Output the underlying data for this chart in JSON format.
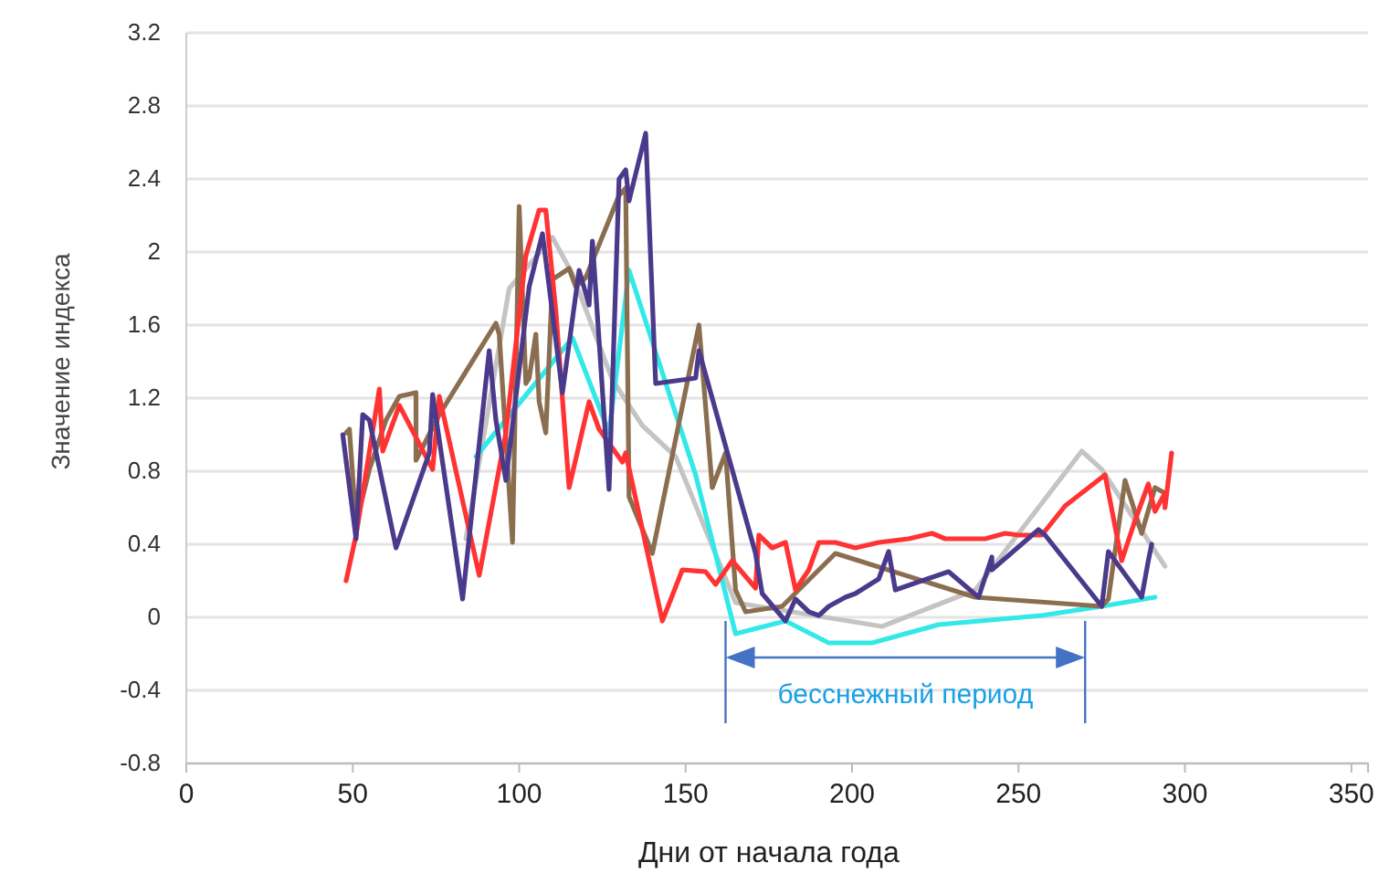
{
  "chart_data": {
    "type": "line",
    "xlabel": "Дни от начала года",
    "ylabel": "Значение индекса",
    "xlim": [
      0,
      355
    ],
    "xticks": [
      0,
      50,
      100,
      150,
      200,
      250,
      300,
      350
    ],
    "ylim": [
      -0.8,
      3.2
    ],
    "yticks": [
      -0.8,
      -0.4,
      0,
      0.4,
      0.8,
      1.2,
      1.6,
      2,
      2.4,
      2.8,
      3.2
    ],
    "grid": "y",
    "ref_lines": [
      {
        "axis": "x",
        "value": 162,
        "color": "#4472c4"
      },
      {
        "axis": "x",
        "value": 270,
        "color": "#4472c4"
      }
    ],
    "annotations": [
      "бесснежный период"
    ],
    "series": [
      {
        "color": "#c4c4c4",
        "x": [
          84,
          97,
          110,
          116,
          128,
          137,
          147,
          165,
          209,
          237,
          269,
          275,
          294
        ],
        "values": [
          0.43,
          1.8,
          2.08,
          1.88,
          1.3,
          1.05,
          0.88,
          0.08,
          -0.05,
          0.15,
          0.91,
          0.81,
          0.28
        ]
      },
      {
        "color": "#33e8e8",
        "x": [
          87,
          116,
          127,
          133,
          153,
          165,
          180,
          193,
          206,
          226,
          257,
          275,
          291
        ],
        "values": [
          0.88,
          1.53,
          1.01,
          1.9,
          0.78,
          -0.09,
          -0.02,
          -0.14,
          -0.14,
          -0.04,
          0.01,
          0.06,
          0.11
        ]
      },
      {
        "color": "#8b6e50",
        "x": [
          48,
          49,
          51,
          55,
          60,
          64,
          69,
          69,
          76,
          93,
          94,
          98,
          100,
          102,
          103,
          105,
          106,
          108,
          110,
          115,
          117,
          120,
          130,
          132,
          133,
          140,
          154,
          158,
          162,
          165,
          168,
          179,
          195,
          202,
          237,
          275,
          277,
          282,
          287,
          291,
          294
        ],
        "values": [
          1.01,
          1.03,
          0.51,
          0.81,
          1.08,
          1.21,
          1.23,
          0.86,
          1.11,
          1.61,
          1.55,
          0.41,
          2.25,
          1.28,
          1.31,
          1.55,
          1.18,
          1.01,
          1.85,
          1.91,
          1.81,
          1.86,
          2.31,
          2.35,
          0.66,
          0.35,
          1.6,
          0.71,
          0.9,
          0.15,
          0.03,
          0.06,
          0.35,
          0.31,
          0.11,
          0.06,
          0.1,
          0.75,
          0.46,
          0.71,
          0.68
        ]
      },
      {
        "color": "#ff3333",
        "x": [
          48,
          51,
          58,
          59,
          64,
          74,
          76,
          88,
          96,
          102,
          106,
          108,
          111,
          115,
          121,
          124,
          131,
          132,
          135,
          143,
          149,
          156,
          159,
          164,
          171,
          172,
          176,
          180,
          183,
          187,
          190,
          195,
          201,
          208,
          217,
          224,
          228,
          240,
          246,
          250,
          257,
          264,
          276,
          281,
          285,
          289,
          291,
          294,
          294,
          296
        ],
        "values": [
          0.2,
          0.45,
          1.25,
          0.91,
          1.16,
          0.81,
          1.21,
          0.23,
          1.01,
          1.98,
          2.23,
          2.23,
          1.68,
          0.71,
          1.18,
          1.03,
          0.85,
          0.9,
          0.65,
          -0.02,
          0.26,
          0.25,
          0.18,
          0.31,
          0.16,
          0.45,
          0.38,
          0.41,
          0.15,
          0.26,
          0.41,
          0.41,
          0.38,
          0.41,
          0.43,
          0.46,
          0.43,
          0.43,
          0.46,
          0.45,
          0.45,
          0.61,
          0.78,
          0.31,
          0.53,
          0.73,
          0.58,
          0.68,
          0.6,
          0.9
        ]
      },
      {
        "color": "#4b3a8c",
        "x": [
          47,
          51,
          53,
          55,
          63,
          73,
          74,
          83,
          91,
          93,
          96,
          103,
          107,
          113,
          118,
          121,
          122,
          127,
          130,
          132,
          133,
          138,
          141,
          153,
          154,
          171,
          173,
          180,
          183,
          187,
          190,
          193,
          198,
          201,
          208,
          211,
          213,
          229,
          238,
          242,
          242,
          256,
          258,
          275,
          277,
          287,
          289,
          290
        ],
        "values": [
          1.0,
          0.43,
          1.11,
          1.08,
          0.38,
          0.9,
          1.22,
          0.1,
          1.46,
          1.08,
          0.75,
          1.81,
          2.1,
          1.23,
          1.9,
          1.71,
          2.06,
          0.7,
          2.4,
          2.45,
          2.28,
          2.65,
          1.28,
          1.31,
          1.46,
          0.35,
          0.13,
          -0.02,
          0.1,
          0.03,
          0.01,
          0.06,
          0.11,
          0.13,
          0.21,
          0.36,
          0.15,
          0.25,
          0.11,
          0.33,
          0.26,
          0.48,
          0.45,
          0.06,
          0.36,
          0.11,
          0.31,
          0.4
        ]
      }
    ]
  }
}
